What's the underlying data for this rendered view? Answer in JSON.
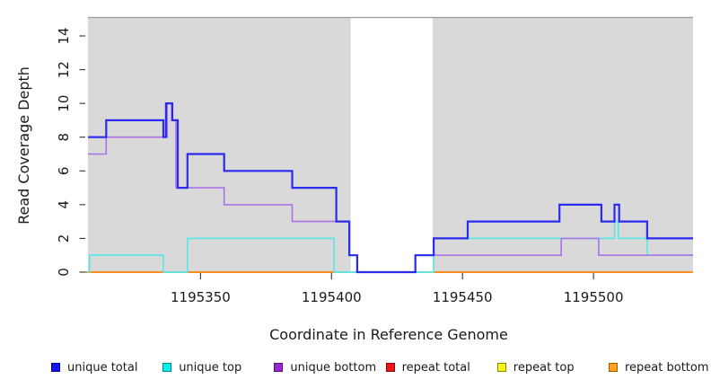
{
  "chart_data": {
    "type": "line",
    "subtype": "step",
    "title": "",
    "xlabel": "Coordinate in Reference Genome",
    "ylabel": "Read Coverage Depth",
    "xlim": [
      1195306,
      1195538
    ],
    "ylim": [
      0,
      15
    ],
    "xticks": [
      1195350,
      1195400,
      1195450,
      1195500
    ],
    "yticks": [
      0,
      2,
      4,
      6,
      8,
      10,
      12,
      14
    ],
    "grid": false,
    "legend_position": "bottom",
    "background_shading": {
      "color": "#d9d9d9",
      "top_border_color": "#9b9b9b",
      "regions": [
        [
          1195307,
          1195407.3
        ],
        [
          1195438.6,
          1195538
        ]
      ],
      "unshaded_gap": [
        1195407.3,
        1195438.6
      ]
    },
    "series": [
      {
        "name": "unique total",
        "color": "#2a2af0",
        "width": 2.2,
        "points": [
          [
            1195307,
            8
          ],
          [
            1195314,
            9
          ],
          [
            1195335.8,
            8
          ],
          [
            1195336.8,
            10
          ],
          [
            1195339.2,
            9
          ],
          [
            1195341.3,
            5
          ],
          [
            1195345,
            7
          ],
          [
            1195359,
            6
          ],
          [
            1195385,
            5
          ],
          [
            1195401.8,
            3
          ],
          [
            1195406.8,
            1
          ],
          [
            1195409.8,
            0
          ],
          [
            1195432,
            1
          ],
          [
            1195439,
            2
          ],
          [
            1195452,
            3
          ],
          [
            1195487,
            4
          ],
          [
            1195503,
            3
          ],
          [
            1195508,
            4
          ],
          [
            1195509.8,
            3
          ],
          [
            1195520.5,
            2
          ],
          [
            1195538,
            2
          ]
        ]
      },
      {
        "name": "unique top",
        "color": "#55e8e8",
        "width": 1.6,
        "points": [
          [
            1195306.6,
            0
          ],
          [
            1195307.6,
            1
          ],
          [
            1195335.8,
            0
          ],
          [
            1195345,
            2
          ],
          [
            1195401,
            0
          ],
          [
            1195439,
            2
          ],
          [
            1195508,
            3
          ],
          [
            1195509.5,
            2
          ],
          [
            1195520.5,
            1
          ],
          [
            1195538,
            1
          ]
        ]
      },
      {
        "name": "unique bottom",
        "color": "#a873e6",
        "width": 1.6,
        "points": [
          [
            1195307,
            7
          ],
          [
            1195314,
            8
          ],
          [
            1195337.3,
            10
          ],
          [
            1195339,
            9
          ],
          [
            1195340.6,
            5
          ],
          [
            1195359,
            4
          ],
          [
            1195385,
            3
          ],
          [
            1195406.8,
            1
          ],
          [
            1195409.8,
            0
          ],
          [
            1195432,
            1
          ],
          [
            1195487.7,
            2
          ],
          [
            1195502,
            1
          ],
          [
            1195538,
            1
          ]
        ]
      },
      {
        "name": "repeat total",
        "color": "#d02020",
        "width": 1,
        "points": [
          [
            1195306,
            0
          ],
          [
            1195538,
            0
          ]
        ]
      },
      {
        "name": "repeat top",
        "color": "#e8e820",
        "width": 1,
        "points": [
          [
            1195306,
            0
          ],
          [
            1195538,
            0
          ]
        ]
      },
      {
        "name": "repeat bottom",
        "color": "#ff8c1e",
        "width": 2,
        "value": 0,
        "segments": [
          [
            1195306,
            1195335.8
          ],
          [
            1195345,
            1195401
          ],
          [
            1195439,
            1195538
          ]
        ]
      }
    ],
    "zero_line_blend": {
      "color": "#7ccf88",
      "width": 1.8,
      "segments": [
        [
          1195335.8,
          1195345
        ],
        [
          1195401,
          1195439
        ]
      ]
    },
    "legend": [
      {
        "label": "unique total",
        "fill": "#1414f0",
        "border": "#00009a"
      },
      {
        "label": "unique top",
        "fill": "#00f0f0",
        "border": "#008a8a"
      },
      {
        "label": "unique bottom",
        "fill": "#9a28d0",
        "border": "#5a0a86"
      },
      {
        "label": "repeat total",
        "fill": "#f01414",
        "border": "#8a0000"
      },
      {
        "label": "repeat top",
        "fill": "#f5f514",
        "border": "#8a8a00"
      },
      {
        "label": "repeat bottom",
        "fill": "#ffa01e",
        "border": "#a05a00"
      }
    ]
  }
}
